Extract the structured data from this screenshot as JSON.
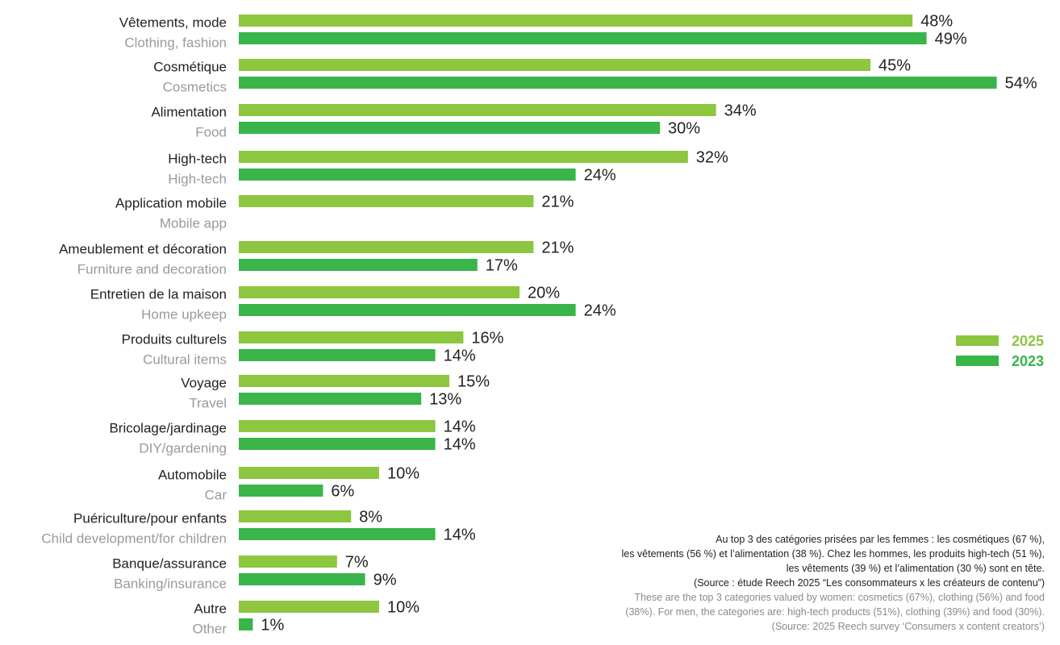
{
  "colors": {
    "y2025": "#8dc63f",
    "y2023": "#39b54a"
  },
  "legend": [
    {
      "label": "2025",
      "color": "#8dc63f"
    },
    {
      "label": "2023",
      "color": "#39b54a"
    }
  ],
  "chart_data": {
    "type": "bar",
    "orientation": "horizontal",
    "categories": [
      {
        "fr": "Vêtements, mode",
        "en": "Clothing, fashion"
      },
      {
        "fr": "Cosmétique",
        "en": "Cosmetics"
      },
      {
        "fr": "Alimentation",
        "en": "Food"
      },
      {
        "fr": "High-tech",
        "en": "High-tech"
      },
      {
        "fr": "Application mobile",
        "en": "Mobile app"
      },
      {
        "fr": "Ameublement et décoration",
        "en": "Furniture and decoration"
      },
      {
        "fr": "Entretien de la maison",
        "en": "Home upkeep"
      },
      {
        "fr": "Produits culturels",
        "en": "Cultural items"
      },
      {
        "fr": "Voyage",
        "en": "Travel"
      },
      {
        "fr": "Bricolage/jardinage",
        "en": "DIY/gardening"
      },
      {
        "fr": "Automobile",
        "en": "Car"
      },
      {
        "fr": "Puériculture/pour enfants",
        "en": "Child development/for children"
      },
      {
        "fr": "Banque/assurance",
        "en": "Banking/insurance"
      },
      {
        "fr": "Autre",
        "en": "Other"
      }
    ],
    "series": [
      {
        "name": "2025",
        "values": [
          48,
          45,
          34,
          32,
          21,
          21,
          20,
          16,
          15,
          14,
          10,
          8,
          7,
          10
        ]
      },
      {
        "name": "2023",
        "values": [
          49,
          54,
          30,
          24,
          null,
          17,
          24,
          14,
          13,
          14,
          6,
          14,
          9,
          1
        ]
      }
    ],
    "value_suffix": "%",
    "xlim": [
      0,
      54
    ],
    "grid": false,
    "legend_position": "right"
  },
  "note": {
    "fr_lines": [
      "Au top 3 des catégories prisées par les femmes : les cosmétiques (67 %),",
      "les vêtements (56 %) et l’alimentation (38 %). Chez les hommes, les produits high-tech (51 %),",
      "les vêtements (39 %) et l’alimentation (30 %) sont en tête.",
      "(Source : étude Reech 2025 “Les consommateurs x les créateurs de contenu”)"
    ],
    "en_lines": [
      "These are the top 3 categories valued by women: cosmetics (67%), clothing (56%) and food",
      "(38%). For men, the categories are: high-tech products (51%), clothing (39%) and food (30%).",
      "(Source: 2025 Reech survey ‘Consumers x content creators’)"
    ]
  }
}
